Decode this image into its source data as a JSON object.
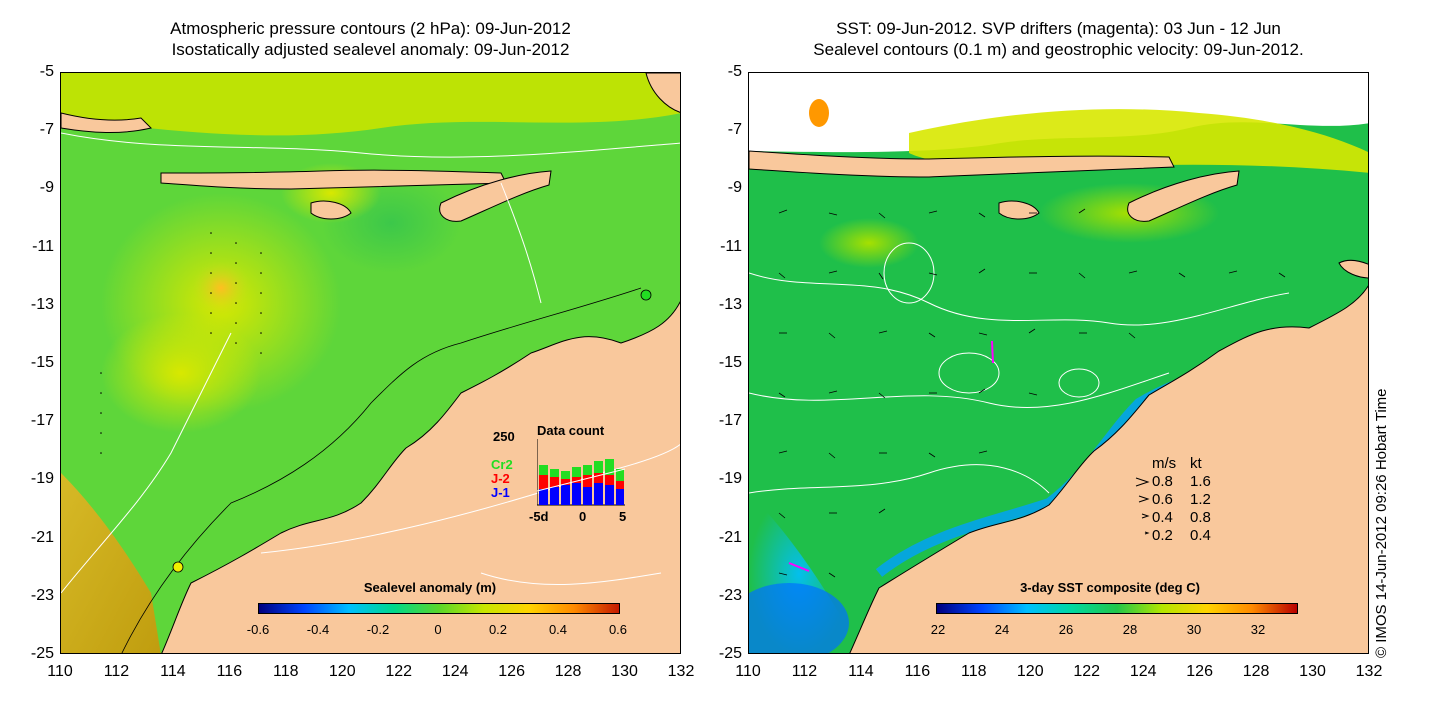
{
  "left_panel": {
    "title_line1": "Atmospheric pressure contours (2 hPa): 09-Jun-2012",
    "title_line2": "Isostatically adjusted sealevel anomaly: 09-Jun-2012",
    "colorbar_title": "Sealevel anomaly (m)",
    "colorbar_ticks": [
      "-0.6",
      "-0.4",
      "-0.2",
      "0",
      "0.2",
      "0.4",
      "0.6"
    ],
    "inset": {
      "title": "Data count",
      "ymax_label": "250",
      "series_labels": [
        "Cr2",
        "J-2",
        "J-1"
      ],
      "series_colors": [
        "#22dd22",
        "#ff0000",
        "#0000ff"
      ],
      "x_ticks": [
        "-5d",
        "0",
        "5"
      ]
    }
  },
  "right_panel": {
    "title_line1": "SST: 09-Jun-2012. SVP drifters (magenta): 03 Jun - 12 Jun",
    "title_line2": "Sealevel contours (0.1 m) and geostrophic velocity: 09-Jun-2012.",
    "colorbar_title": "3-day SST composite (deg C)",
    "colorbar_ticks": [
      "22",
      "24",
      "26",
      "28",
      "30",
      "32"
    ],
    "velocity_legend": {
      "header_ms": "m/s",
      "header_kt": "kt",
      "rows": [
        {
          "ms": "0.8",
          "kt": "1.6"
        },
        {
          "ms": "0.6",
          "kt": "1.2"
        },
        {
          "ms": "0.4",
          "kt": "0.8"
        },
        {
          "ms": "0.2",
          "kt": "0.4"
        }
      ]
    }
  },
  "y_ticks": [
    "-5",
    "-7",
    "-9",
    "-11",
    "-13",
    "-15",
    "-17",
    "-19",
    "-21",
    "-23",
    "-25"
  ],
  "x_ticks": [
    "110",
    "112",
    "114",
    "116",
    "118",
    "120",
    "122",
    "124",
    "126",
    "128",
    "130",
    "132"
  ],
  "credit": "© IMOS 14-Jun-2012 09:26 Hobart Time",
  "colors": {
    "land": "#f9c89c",
    "ocean_left": "#5ed63a",
    "ocean_right": "#1fbf4a",
    "sealevel_ramp": [
      "#00007f",
      "#0044ff",
      "#00bfff",
      "#00d88a",
      "#5ad62a",
      "#c8e600",
      "#ffd400",
      "#ff8a00",
      "#c41a00"
    ],
    "sst_ramp": [
      "#00007f",
      "#0044ff",
      "#00bfff",
      "#00d8a0",
      "#22c64a",
      "#b4e600",
      "#ffd400",
      "#ff8a00",
      "#b80000"
    ]
  }
}
